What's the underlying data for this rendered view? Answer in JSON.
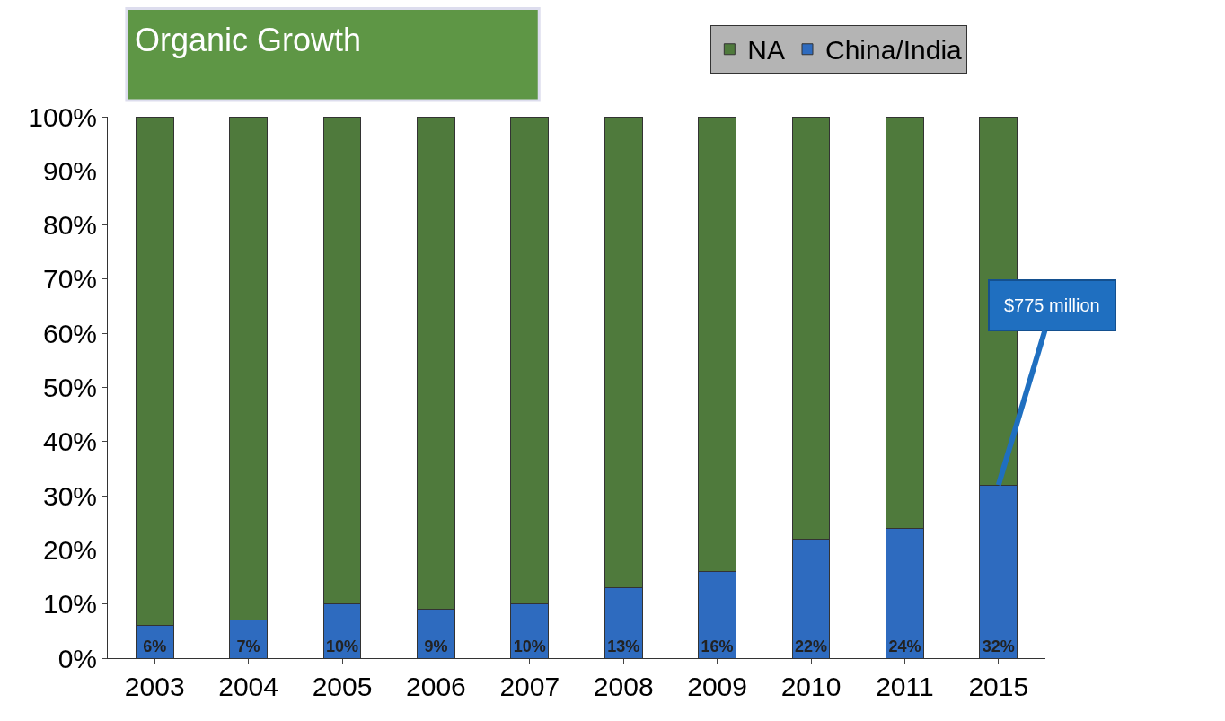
{
  "chart_data": {
    "type": "bar",
    "title": "Organic Growth",
    "stacked": true,
    "categories": [
      "2003",
      "2004",
      "2005",
      "2006",
      "2007",
      "2008",
      "2009",
      "2010",
      "2011",
      "2015"
    ],
    "series": [
      {
        "name": "China/India",
        "color": "#2e6bbf",
        "values": [
          6,
          7,
          10,
          9,
          10,
          13,
          16,
          22,
          24,
          32
        ],
        "value_labels": [
          "6%",
          "7%",
          "10%",
          "9%",
          "10%",
          "13%",
          "16%",
          "22%",
          "24%",
          "32%"
        ]
      },
      {
        "name": "NA",
        "color": "#4f7a3c",
        "values": [
          94,
          93,
          90,
          91,
          90,
          87,
          84,
          78,
          76,
          68
        ]
      }
    ],
    "ylim": [
      0,
      100
    ],
    "yticks": [
      {
        "value": 0,
        "label": "0%"
      },
      {
        "value": 10,
        "label": "10%"
      },
      {
        "value": 20,
        "label": "20%"
      },
      {
        "value": 30,
        "label": "30%"
      },
      {
        "value": 40,
        "label": "40%"
      },
      {
        "value": 50,
        "label": "50%"
      },
      {
        "value": 60,
        "label": "60%"
      },
      {
        "value": 70,
        "label": "70%"
      },
      {
        "value": 80,
        "label": "80%"
      },
      {
        "value": 90,
        "label": "90%"
      },
      {
        "value": 100,
        "label": "100%"
      }
    ],
    "grid": false,
    "legend": "top",
    "annotations": [
      {
        "text": "$775 million",
        "x": "2015",
        "y": 32
      }
    ]
  }
}
